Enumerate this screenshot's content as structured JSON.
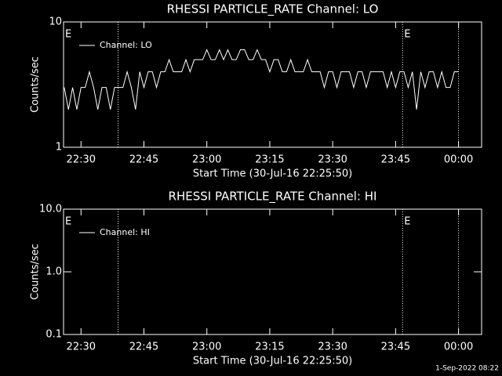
{
  "chart_data": [
    {
      "type": "line",
      "title": "RHESSI PARTICLE_RATE Channel: LO",
      "xlabel": "Start Time (30-Jul-16 22:25:50)",
      "ylabel": "Counts/sec",
      "log_y": true,
      "ylim": [
        1,
        10
      ],
      "yticks": [
        1,
        10
      ],
      "xlim": [
        "22:25:50",
        "00:05:30"
      ],
      "xticks": [
        "22:30",
        "22:45",
        "23:00",
        "23:15",
        "23:30",
        "23:45",
        "00:00"
      ],
      "vlines": [
        "22:38:50",
        "23:46:40",
        "00:00"
      ],
      "annotations": [
        {
          "text": "E",
          "x": "22:25:50"
        },
        {
          "text": "E",
          "x": "23:46:40"
        }
      ],
      "legend": "top-left",
      "series": [
        {
          "name": "Channel: LO",
          "color": "#ffffff",
          "x": [
            "22:26",
            "22:27",
            "22:28",
            "22:29",
            "22:30",
            "22:31",
            "22:32",
            "22:33",
            "22:34",
            "22:35",
            "22:36",
            "22:37",
            "22:38",
            "22:39",
            "22:40",
            "22:41",
            "22:42",
            "22:43",
            "22:44",
            "22:45",
            "22:46",
            "22:47",
            "22:48",
            "22:49",
            "22:50",
            "22:51",
            "22:52",
            "22:53",
            "22:54",
            "22:55",
            "22:56",
            "22:57",
            "22:58",
            "22:59",
            "23:00",
            "23:01",
            "23:02",
            "23:03",
            "23:04",
            "23:05",
            "23:06",
            "23:07",
            "23:08",
            "23:09",
            "23:10",
            "23:11",
            "23:12",
            "23:13",
            "23:14",
            "23:15",
            "23:16",
            "23:17",
            "23:18",
            "23:19",
            "23:20",
            "23:21",
            "23:22",
            "23:23",
            "23:24",
            "23:25",
            "23:26",
            "23:27",
            "23:28",
            "23:29",
            "23:30",
            "23:31",
            "23:32",
            "23:33",
            "23:34",
            "23:35",
            "23:36",
            "23:37",
            "23:38",
            "23:39",
            "23:40",
            "23:41",
            "23:42",
            "23:43",
            "23:44",
            "23:45",
            "23:46",
            "23:47",
            "23:48",
            "23:49",
            "23:50",
            "23:51",
            "23:52",
            "23:53",
            "23:54",
            "23:55",
            "23:56",
            "23:57",
            "23:58",
            "23:59",
            "00:00"
          ],
          "values": [
            3,
            2,
            3,
            2,
            3,
            3,
            4,
            3,
            2,
            3,
            3,
            2,
            3,
            3,
            3,
            4,
            3,
            2,
            4,
            3,
            4,
            4,
            3,
            4,
            4,
            5,
            4,
            4,
            4,
            5,
            4,
            5,
            5,
            5,
            6,
            5,
            5,
            6,
            5,
            6,
            5,
            5,
            6,
            6,
            5,
            5,
            6,
            5,
            5,
            4,
            5,
            5,
            4,
            4,
            5,
            4,
            4,
            4,
            5,
            4,
            4,
            4,
            3,
            4,
            4,
            3,
            4,
            4,
            4,
            3,
            4,
            4,
            3,
            4,
            4,
            4,
            4,
            3,
            4,
            3,
            4,
            4,
            3,
            4,
            2,
            4,
            3,
            4,
            4,
            3,
            4,
            3,
            3,
            4,
            4
          ]
        }
      ]
    },
    {
      "type": "line",
      "title": "RHESSI PARTICLE_RATE Channel: HI",
      "xlabel": "Start Time (30-Jul-16 22:25:50)",
      "ylabel": "Counts/sec",
      "log_y": true,
      "ylim": [
        0.1,
        10
      ],
      "yticks": [
        0.1,
        {
          "value": 1,
          "label": "1.0"
        },
        {
          "value": 10,
          "label": "10.0"
        }
      ],
      "xlim": [
        "22:25:50",
        "00:05:30"
      ],
      "xticks": [
        "22:30",
        "22:45",
        "23:00",
        "23:15",
        "23:30",
        "23:45",
        "00:00"
      ],
      "vlines": [
        "22:38:50",
        "23:46:40",
        "00:00"
      ],
      "annotations": [
        {
          "text": "E",
          "x": "22:25:50"
        },
        {
          "text": "E",
          "x": "23:46:40"
        }
      ],
      "legend": "top-left",
      "series": [
        {
          "name": "Channel: HI",
          "color": "#ffffff",
          "x": [],
          "values": []
        }
      ]
    }
  ],
  "footer": "1-Sep-2022 08:22"
}
